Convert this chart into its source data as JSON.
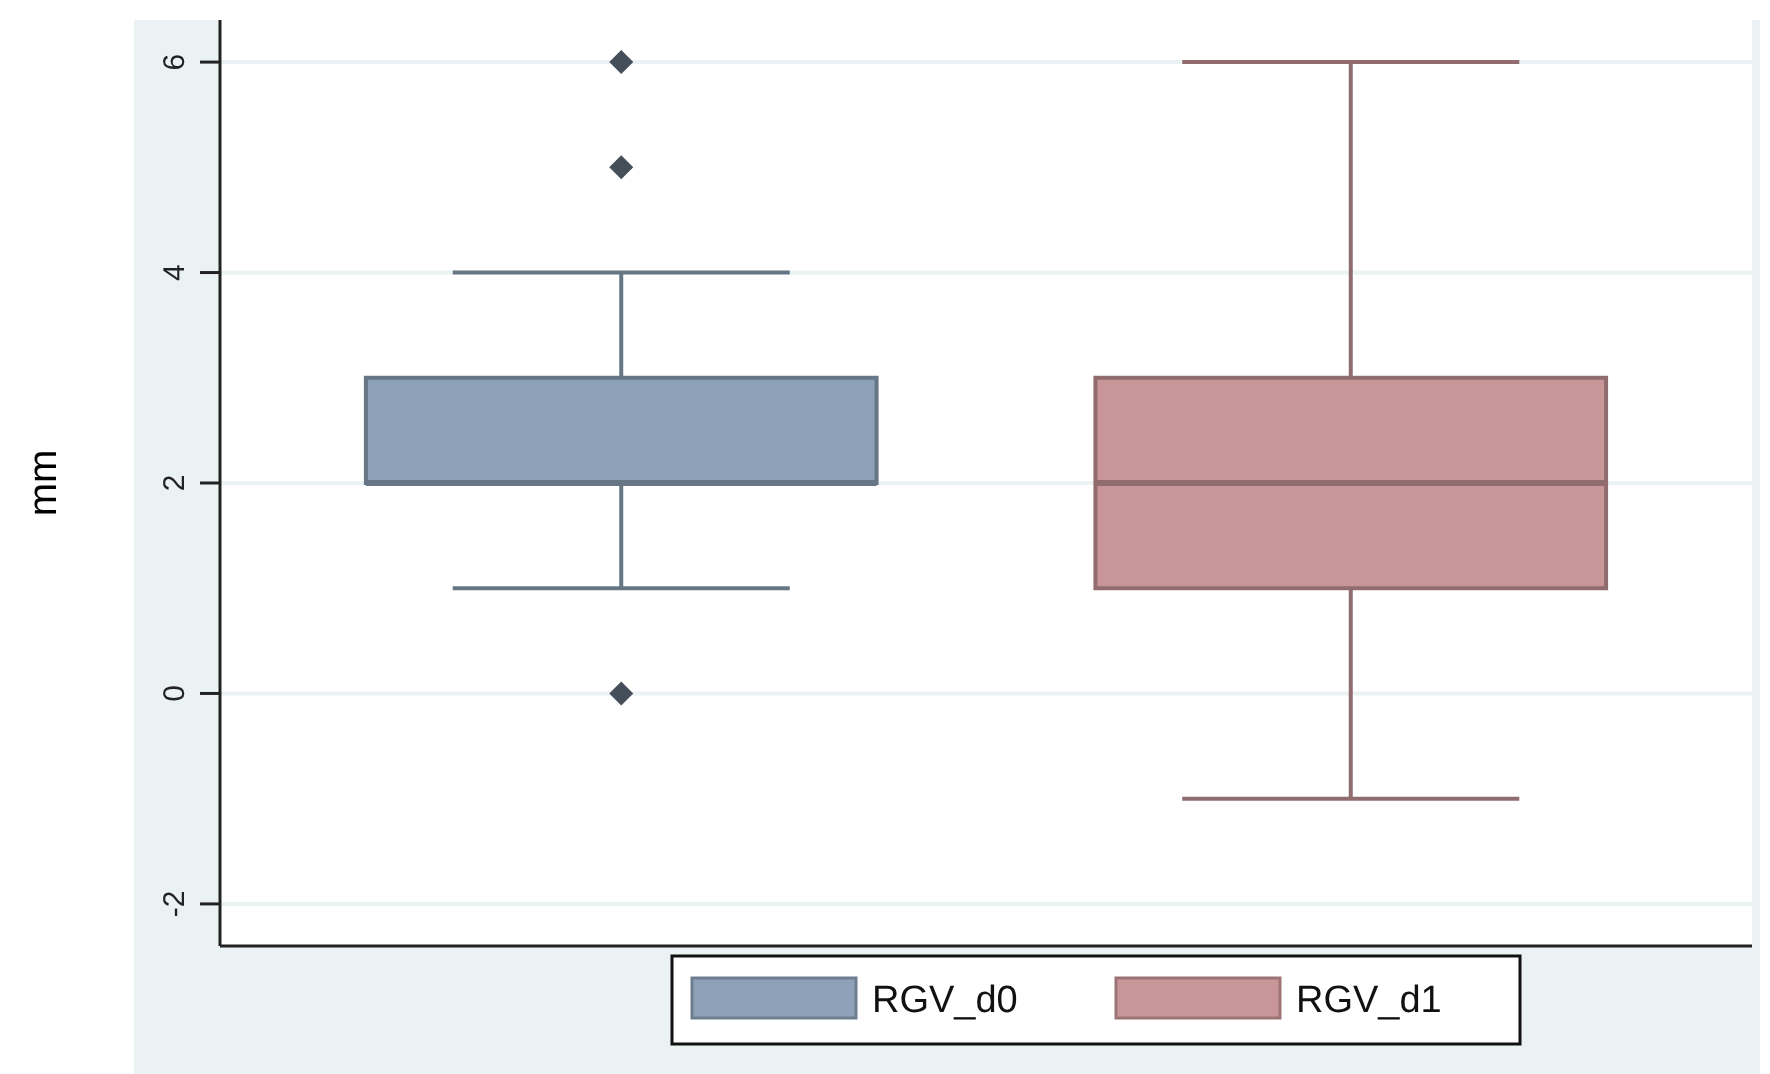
{
  "chart_data": {
    "type": "box",
    "ylabel": "mm",
    "categories": [
      null
    ],
    "ylim": [
      -2.4,
      6.4
    ],
    "yticks": [
      -2,
      0,
      2,
      4,
      6
    ],
    "grid": "y",
    "legend": "bottom",
    "marker": "diamond",
    "series": [
      {
        "name": "RGV_d0",
        "color": "#8da2b8",
        "boxes": [
          {
            "low": 1,
            "q1": 2,
            "median": 2,
            "q3": 3,
            "high": 4,
            "outliers": [
              0,
              5,
              6
            ]
          }
        ]
      },
      {
        "name": "RGV_d1",
        "color": "#c89598",
        "boxes": [
          {
            "low": -1,
            "q1": 1,
            "median": 2,
            "q3": 3,
            "high": 6
          }
        ]
      }
    ]
  }
}
